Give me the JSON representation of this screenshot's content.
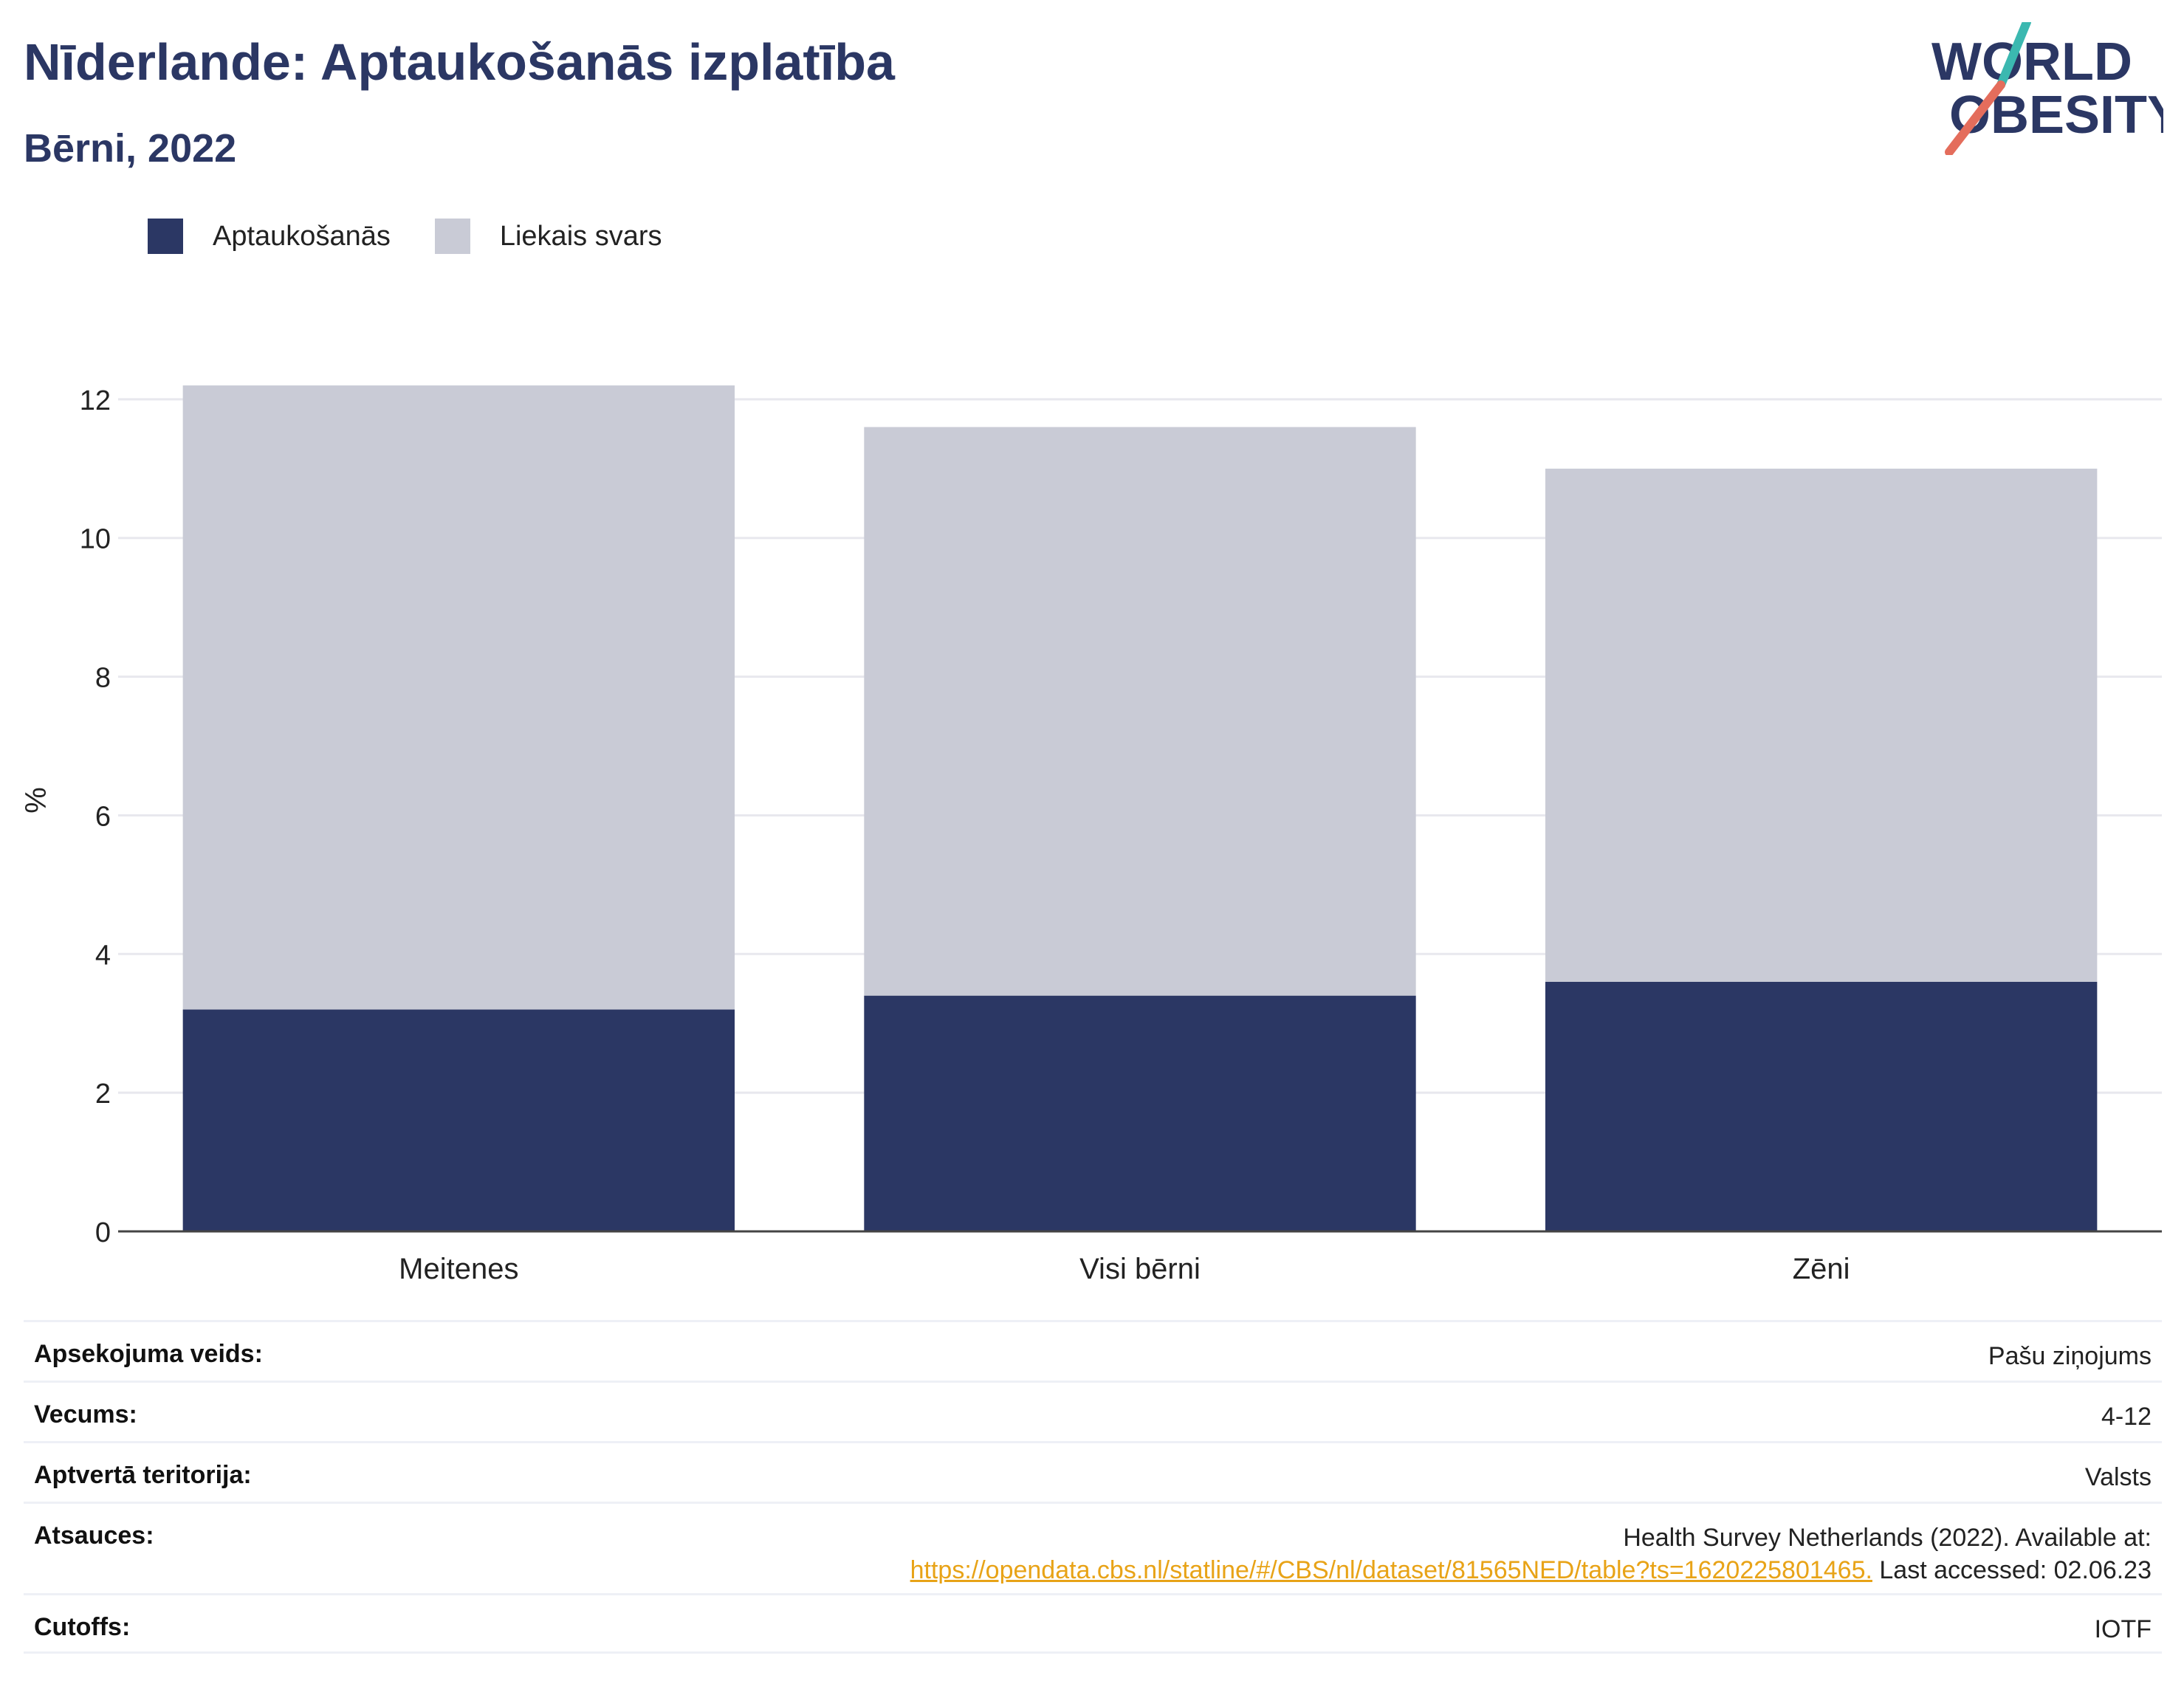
{
  "header": {
    "title": "Nīderlande: Aptaukošanās izplatība",
    "subtitle": "Bērni, 2022"
  },
  "logo": {
    "line1": "WORLD",
    "line2": "OBESITY"
  },
  "legend": [
    {
      "label": "Aptaukošanās",
      "color": "#2b3764"
    },
    {
      "label": "Liekais svars",
      "color": "#c9cbd6"
    }
  ],
  "chart_data": {
    "type": "bar",
    "stacked": true,
    "categories": [
      "Meitenes",
      "Visi bērni",
      "Zēni"
    ],
    "series": [
      {
        "name": "Aptaukošanās",
        "values": [
          3.2,
          3.4,
          3.6
        ],
        "color": "#2b3764"
      },
      {
        "name": "Liekais svars",
        "values": [
          9.0,
          8.2,
          7.4
        ],
        "color": "#c9cbd6"
      }
    ],
    "ylabel": "%",
    "ylim": [
      0,
      13.5
    ],
    "yticks": [
      0,
      2,
      4,
      6,
      8,
      10,
      12
    ],
    "grid": true,
    "legend_position": "top-left"
  },
  "info": {
    "survey_label": "Apsekojuma veids:",
    "survey_value": "Pašu ziņojums",
    "age_label": "Vecums:",
    "age_value": "4-12",
    "area_label": "Aptvertā teritorija:",
    "area_value": "Valsts",
    "refs_label": "Atsauces:",
    "refs_text1": "Health Survey Netherlands (2022). Available at:",
    "refs_link": "https://opendata.cbs.nl/statline/#/CBS/nl/dataset/81565NED/table?ts=1620225801465.",
    "refs_text2": " Last accessed: 02.06.23",
    "cutoffs_label": "Cutoffs:",
    "cutoffs_value": "IOTF"
  }
}
